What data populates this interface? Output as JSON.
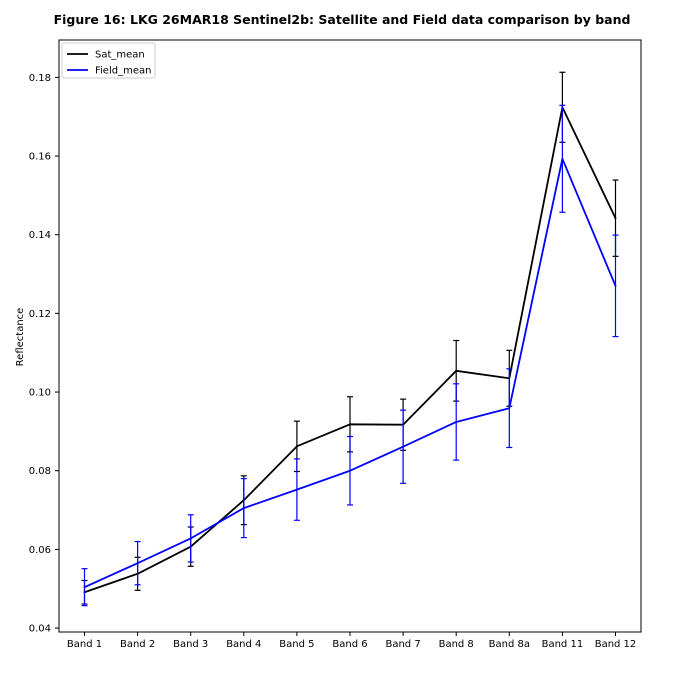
{
  "chart_data": {
    "type": "line",
    "title": "Figure 16: LKG 26MAR18  Sentinel2b: Satellite and Field data comparison by band",
    "xlabel": "",
    "ylabel": "Reflectance",
    "ylim": [
      0.039,
      0.1895
    ],
    "yticks": [
      0.04,
      0.06,
      0.08,
      0.1,
      0.12,
      0.14,
      0.16,
      0.18
    ],
    "ytick_labels": [
      "0.04",
      "0.06",
      "0.08",
      "0.10",
      "0.12",
      "0.14",
      "0.16",
      "0.18"
    ],
    "grid": false,
    "legend_position": "top-left",
    "categories": [
      "Band 1",
      "Band 2",
      "Band 3",
      "Band 4",
      "Band 5",
      "Band 6",
      "Band 7",
      "Band 8",
      "Band 8a",
      "Band 11",
      "Band 12"
    ],
    "series": [
      {
        "name": "Sat_mean",
        "color": "#000000",
        "values": [
          0.0491,
          0.0538,
          0.0607,
          0.0725,
          0.0862,
          0.0918,
          0.0917,
          0.1054,
          0.1035,
          0.1724,
          0.1442
        ],
        "errors": [
          0.003,
          0.0042,
          0.005,
          0.0062,
          0.0064,
          0.007,
          0.0065,
          0.0077,
          0.0071,
          0.0089,
          0.0097
        ]
      },
      {
        "name": "Field_mean",
        "color": "#0000ff",
        "values": [
          0.0504,
          0.0565,
          0.0628,
          0.0705,
          0.0752,
          0.08,
          0.0861,
          0.0924,
          0.0959,
          0.1593,
          0.127
        ],
        "errors": [
          0.0047,
          0.0055,
          0.006,
          0.0075,
          0.0078,
          0.0087,
          0.0093,
          0.0097,
          0.01,
          0.0136,
          0.0129
        ]
      }
    ]
  }
}
